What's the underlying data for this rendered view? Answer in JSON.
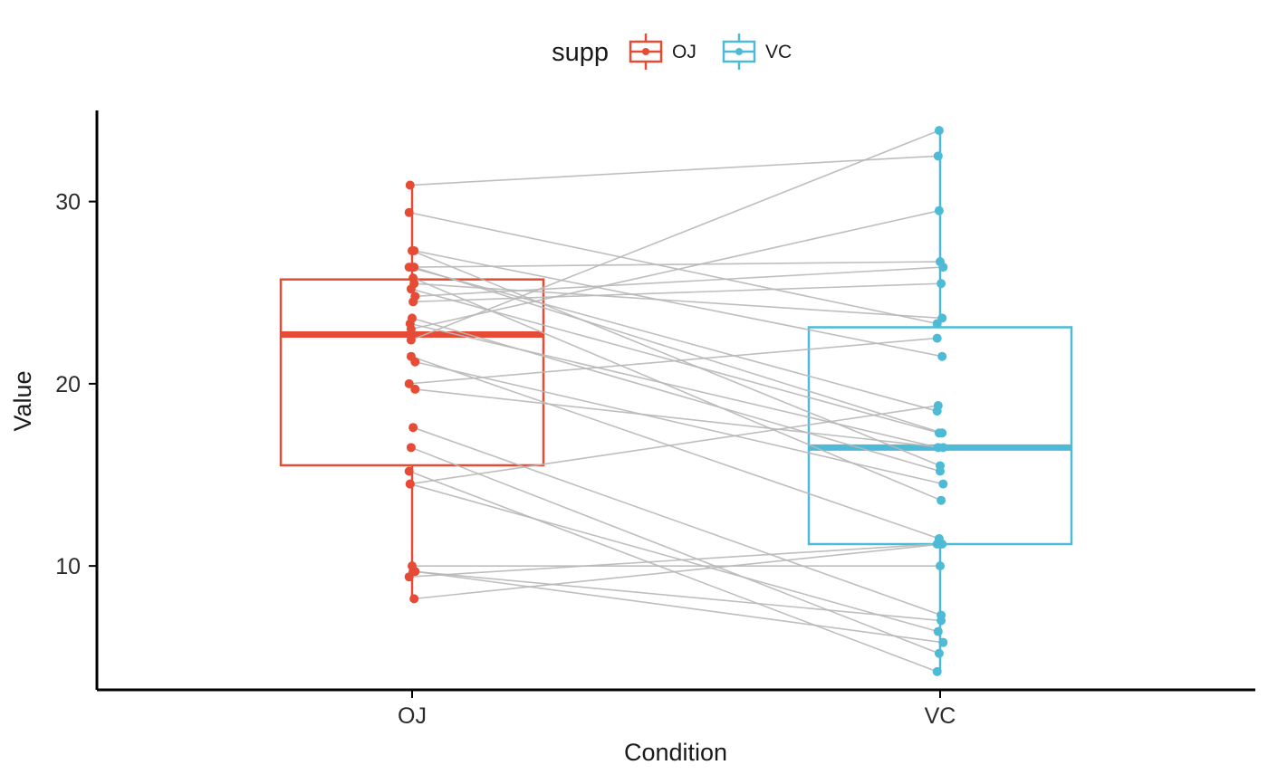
{
  "legend": {
    "title": "supp",
    "entries": [
      {
        "label": "OJ"
      },
      {
        "label": "VC"
      }
    ]
  },
  "chart_data": {
    "type": "boxplot",
    "title": "",
    "xlabel": "Condition",
    "ylabel": "Value",
    "categories": [
      "OJ",
      "VC"
    ],
    "y_ticks": [
      10,
      20,
      30
    ],
    "ylim": [
      3.2,
      35.0
    ],
    "grid": false,
    "legend_position": "top",
    "pairing": "by-index",
    "colors": {
      "OJ": "#E64B35",
      "VC": "#4DBBD5",
      "pair_lines": "#B8B8B8",
      "axis": "#000000"
    },
    "groups": [
      {
        "name": "OJ",
        "color": "#E64B35",
        "box": {
          "q1": 15.525,
          "median": 22.7,
          "q3": 25.725,
          "whisker_low": 8.2,
          "whisker_high": 30.9
        },
        "values": [
          15.2,
          21.5,
          17.6,
          9.7,
          14.5,
          10.0,
          8.2,
          9.4,
          16.5,
          9.7,
          19.7,
          23.3,
          23.6,
          26.4,
          20.0,
          25.2,
          25.8,
          21.2,
          14.5,
          27.3,
          25.5,
          26.4,
          22.4,
          24.5,
          24.8,
          30.9,
          26.4,
          27.3,
          29.4,
          23.0
        ]
      },
      {
        "name": "VC",
        "color": "#4DBBD5",
        "box": {
          "q1": 11.2,
          "median": 16.5,
          "q3": 23.1,
          "whisker_low": 4.2,
          "whisker_high": 33.9
        },
        "values": [
          4.2,
          11.5,
          7.3,
          5.8,
          6.4,
          10.0,
          11.2,
          11.2,
          5.2,
          7.0,
          16.5,
          16.5,
          15.2,
          17.3,
          22.5,
          17.3,
          13.6,
          14.5,
          18.8,
          15.5,
          23.6,
          18.5,
          33.9,
          25.5,
          26.4,
          32.5,
          26.7,
          21.5,
          23.3,
          29.5
        ]
      }
    ]
  }
}
